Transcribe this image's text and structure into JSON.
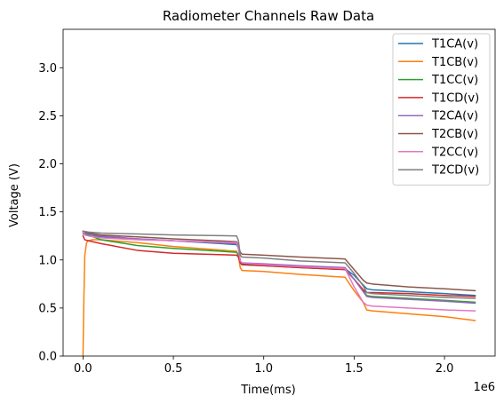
{
  "chart_data": {
    "type": "line",
    "title": "Radiometer Channels Raw Data",
    "xlabel": "Time(ms)",
    "ylabel": "Voltage (V)",
    "x_offset_label": "1e6",
    "xlim": [
      -0.11,
      2.28
    ],
    "ylim": [
      0.0,
      3.4
    ],
    "x_scale_factor": 1000000,
    "xticks": [
      0.0,
      0.5,
      1.0,
      1.5,
      2.0
    ],
    "xtick_labels": [
      "0.0",
      "0.5",
      "1.0",
      "1.5",
      "2.0"
    ],
    "yticks": [
      0.0,
      0.5,
      1.0,
      1.5,
      2.0,
      2.5,
      3.0
    ],
    "ytick_labels": [
      "0.0",
      "0.5",
      "1.0",
      "1.5",
      "2.0",
      "2.5",
      "3.0"
    ],
    "grid": false,
    "legend_position": "upper right",
    "series": [
      {
        "name": "T1CA(v)",
        "color": "#1f77b4",
        "x": [
          0.0,
          0.02,
          0.05,
          0.2,
          0.5,
          0.85,
          0.86,
          0.87,
          0.88,
          1.0,
          1.2,
          1.45,
          1.5,
          1.55,
          1.57,
          1.6,
          1.8,
          2.0,
          2.17
        ],
        "y": [
          1.27,
          1.26,
          1.25,
          1.23,
          1.2,
          1.16,
          1.12,
          0.99,
          0.96,
          0.95,
          0.93,
          0.91,
          0.84,
          0.74,
          0.7,
          0.69,
          0.67,
          0.65,
          0.63
        ]
      },
      {
        "name": "T1CB(v)",
        "color": "#ff7f0e",
        "x": [
          0.0,
          0.005,
          0.01,
          0.02,
          0.03,
          0.05,
          0.1,
          0.3,
          0.5,
          0.85,
          0.86,
          0.87,
          0.88,
          1.0,
          1.2,
          1.45,
          1.5,
          1.55,
          1.57,
          1.6,
          1.8,
          2.0,
          2.17
        ],
        "y": [
          0.0,
          0.6,
          1.05,
          1.18,
          1.2,
          1.21,
          1.21,
          1.18,
          1.14,
          1.09,
          1.04,
          0.92,
          0.89,
          0.88,
          0.85,
          0.82,
          0.68,
          0.56,
          0.48,
          0.47,
          0.44,
          0.41,
          0.37
        ]
      },
      {
        "name": "T1CC(v)",
        "color": "#2ca02c",
        "x": [
          0.0,
          0.03,
          0.1,
          0.3,
          0.5,
          0.85,
          0.86,
          0.87,
          0.88,
          1.0,
          1.2,
          1.45,
          1.5,
          1.55,
          1.57,
          1.6,
          1.8,
          2.0,
          2.17
        ],
        "y": [
          1.29,
          1.26,
          1.21,
          1.15,
          1.12,
          1.08,
          1.05,
          0.97,
          0.95,
          0.94,
          0.92,
          0.9,
          0.8,
          0.68,
          0.63,
          0.62,
          0.6,
          0.58,
          0.56
        ]
      },
      {
        "name": "T1CD(v)",
        "color": "#d62728",
        "x": [
          0.0,
          0.01,
          0.03,
          0.1,
          0.3,
          0.5,
          0.85,
          0.86,
          0.87,
          0.88,
          1.0,
          1.2,
          1.45,
          1.5,
          1.55,
          1.57,
          1.6,
          1.8,
          2.0,
          2.17
        ],
        "y": [
          1.25,
          1.21,
          1.2,
          1.17,
          1.1,
          1.07,
          1.05,
          1.03,
          0.97,
          0.95,
          0.94,
          0.92,
          0.9,
          0.8,
          0.69,
          0.66,
          0.66,
          0.65,
          0.63,
          0.62
        ]
      },
      {
        "name": "T2CA(v)",
        "color": "#9467bd",
        "x": [
          0.0,
          0.03,
          0.1,
          0.3,
          0.5,
          0.85,
          0.86,
          0.87,
          0.88,
          1.0,
          1.2,
          1.45,
          1.5,
          1.55,
          1.57,
          1.6,
          1.8,
          2.0,
          2.17
        ],
        "y": [
          1.29,
          1.27,
          1.25,
          1.22,
          1.2,
          1.17,
          1.13,
          0.99,
          0.97,
          0.96,
          0.94,
          0.92,
          0.8,
          0.67,
          0.62,
          0.61,
          0.59,
          0.57,
          0.55
        ]
      },
      {
        "name": "T2CB(v)",
        "color": "#8c564b",
        "x": [
          0.0,
          0.03,
          0.1,
          0.3,
          0.5,
          0.85,
          0.86,
          0.87,
          0.88,
          1.0,
          1.2,
          1.45,
          1.5,
          1.55,
          1.57,
          1.6,
          1.8,
          2.0,
          2.17
        ],
        "y": [
          1.3,
          1.28,
          1.26,
          1.24,
          1.22,
          1.19,
          1.15,
          1.08,
          1.06,
          1.05,
          1.03,
          1.01,
          0.9,
          0.79,
          0.76,
          0.75,
          0.72,
          0.7,
          0.68
        ]
      },
      {
        "name": "T2CC(v)",
        "color": "#e377c2",
        "x": [
          0.0,
          0.01,
          0.03,
          0.1,
          0.3,
          0.5,
          0.85,
          0.86,
          0.87,
          0.88,
          1.0,
          1.2,
          1.45,
          1.5,
          1.55,
          1.57,
          1.6,
          1.8,
          2.0,
          2.17
        ],
        "y": [
          1.3,
          1.26,
          1.25,
          1.23,
          1.21,
          1.2,
          1.18,
          1.12,
          0.99,
          0.97,
          0.95,
          0.93,
          0.91,
          0.72,
          0.56,
          0.53,
          0.52,
          0.5,
          0.48,
          0.47
        ]
      },
      {
        "name": "T2CD(v)",
        "color": "#7f7f7f",
        "x": [
          0.0,
          0.03,
          0.1,
          0.3,
          0.5,
          0.85,
          0.86,
          0.87,
          0.88,
          1.0,
          1.2,
          1.45,
          1.5,
          1.55,
          1.57,
          1.6,
          1.8,
          2.0,
          2.17
        ],
        "y": [
          1.3,
          1.29,
          1.28,
          1.27,
          1.26,
          1.25,
          1.2,
          1.05,
          1.03,
          1.02,
          0.99,
          0.97,
          0.86,
          0.73,
          0.66,
          0.65,
          0.63,
          0.61,
          0.6
        ]
      }
    ]
  }
}
